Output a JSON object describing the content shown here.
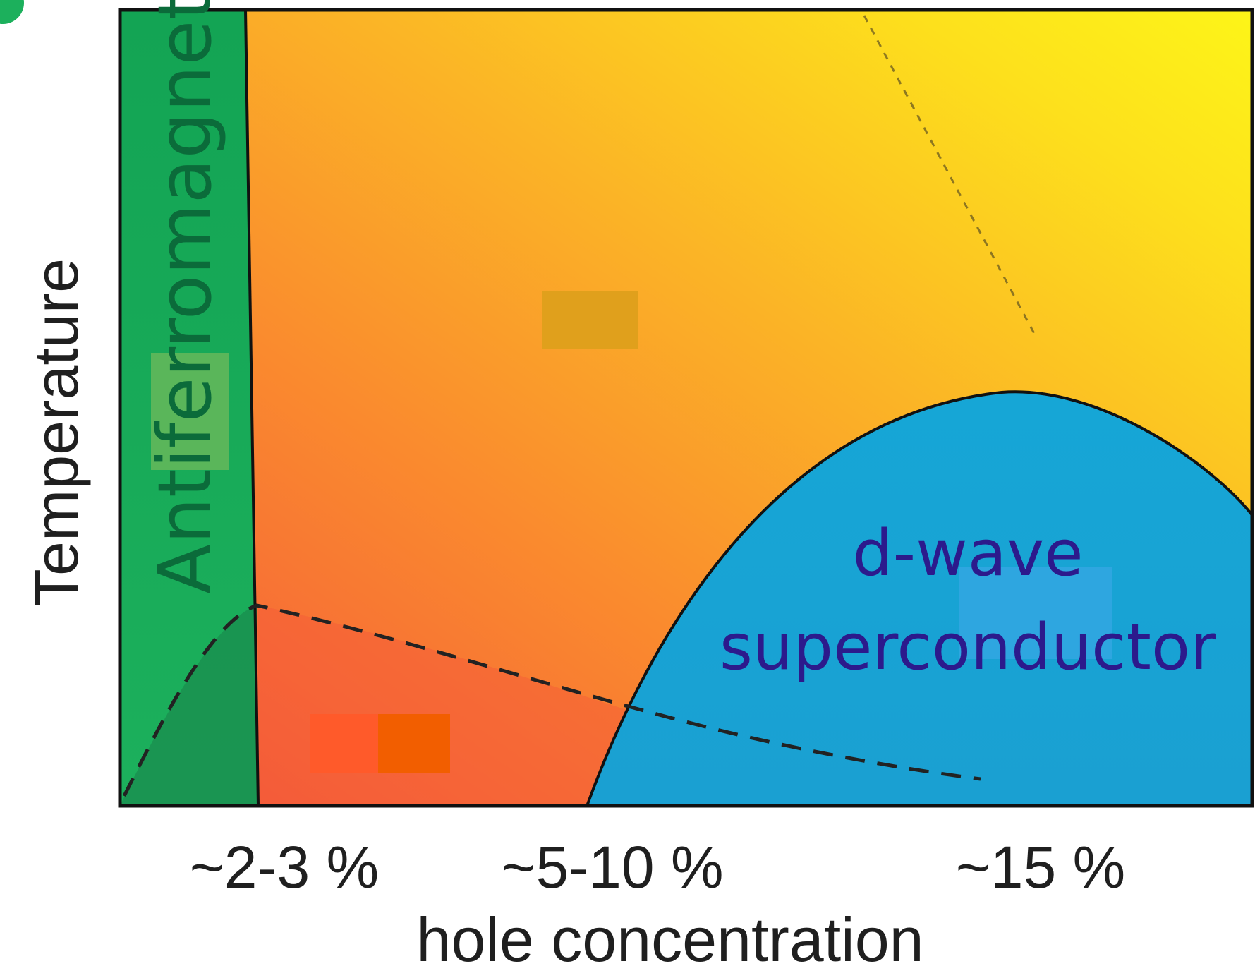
{
  "axes": {
    "y_label": "Temperature",
    "x_label": "hole concentration",
    "x_ticks": [
      "~2-3 %",
      "~5-10 %",
      "~15 %"
    ]
  },
  "regions": {
    "antiferromagnet": {
      "label": "Antiferromagnet",
      "color": "#1fa85a",
      "text_color": "#0b6b3a"
    },
    "superconductor": {
      "label_line1": "d-wave",
      "label_line2": "superconductor",
      "color": "#1aa6d8",
      "text_color": "#2c1a8c"
    }
  },
  "colors": {
    "background_left": "#f46a3a",
    "background_mid": "#fba62c",
    "background_right": "#fdf018",
    "antiferromagnet_dark": "#1a9150",
    "lower_region": "#f4583a",
    "frame": "#111111",
    "box_top": "#e0a01c",
    "box_bottom_left": "#ff5a2a",
    "box_bottom_right": "#f25e00",
    "box_super": "#2ea6e0",
    "box_green": "#5ab65a",
    "corner_dot": "#1cb05c"
  }
}
